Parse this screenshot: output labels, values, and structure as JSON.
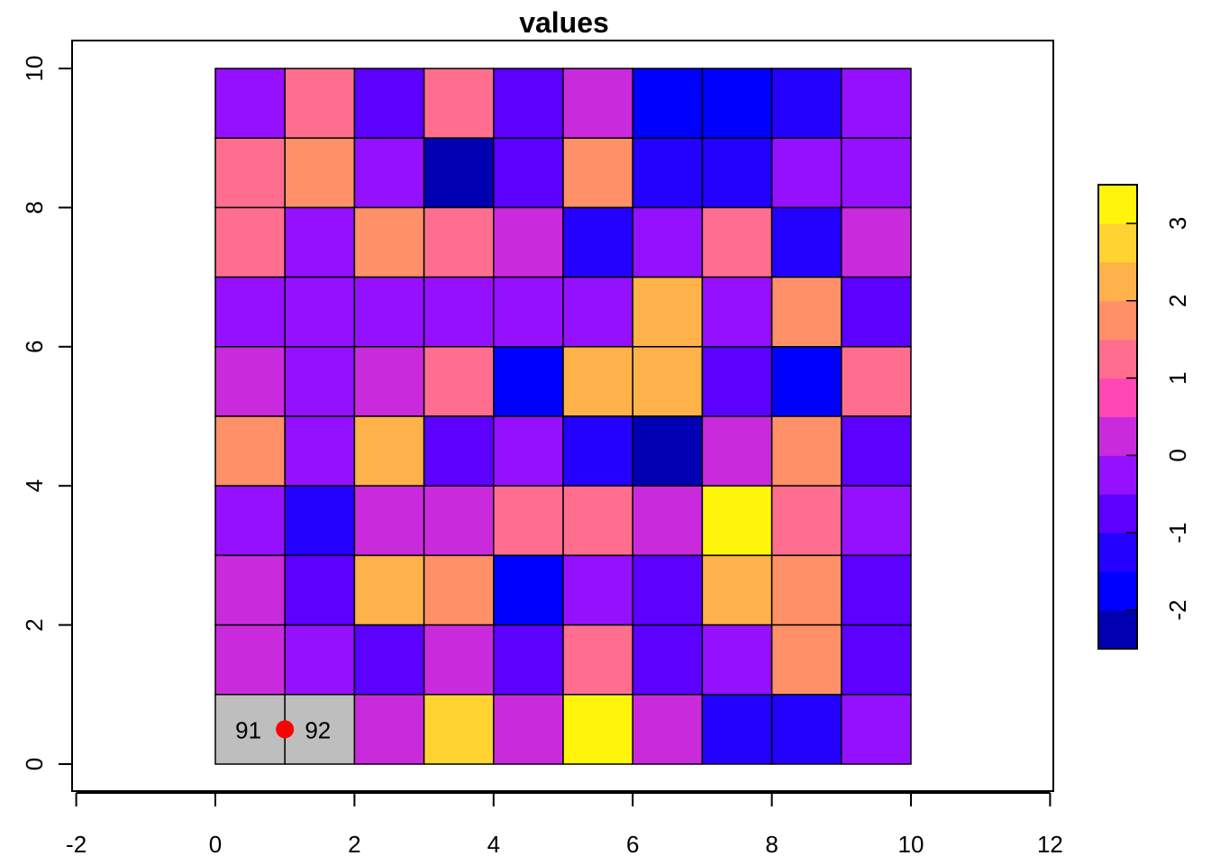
{
  "chart_data": {
    "type": "heatmap",
    "title": "values",
    "xlabel": "",
    "ylabel": "",
    "xlim": [
      -2,
      12
    ],
    "ylim": [
      0,
      10
    ],
    "x_ticks": [
      "-2",
      "0",
      "2",
      "4",
      "6",
      "8",
      "10",
      "12"
    ],
    "y_ticks": [
      "0",
      "2",
      "4",
      "6",
      "8",
      "10"
    ],
    "grid": false,
    "legend": {
      "type": "colorbar",
      "placement": "right",
      "ticks": [
        "-2",
        "-1",
        "0",
        "1",
        "2",
        "3"
      ],
      "breaks": [
        -2.5,
        -2.0,
        -1.5,
        -1.0,
        -0.5,
        0.0,
        0.5,
        1.0,
        1.5,
        2.0,
        2.5,
        3.0,
        3.5
      ],
      "colors": [
        "#0000B2",
        "#0000FF",
        "#2400FF",
        "#5C00FF",
        "#9510FF",
        "#C92BDC",
        "#FF48B5",
        "#FF6E8E",
        "#FF9068",
        "#FFB14A",
        "#FFD332",
        "#FFF50A"
      ]
    },
    "rows_top_to_bottom": [
      [
        -0.2,
        1.2,
        -0.8,
        1.2,
        -0.8,
        0.2,
        -1.8,
        -1.8,
        -1.2,
        -0.2
      ],
      [
        1.2,
        1.7,
        -0.2,
        -2.2,
        -0.8,
        1.7,
        -1.2,
        -1.2,
        -0.2,
        -0.2
      ],
      [
        1.2,
        -0.2,
        1.7,
        1.2,
        0.2,
        -1.2,
        -0.2,
        1.2,
        -1.2,
        0.2
      ],
      [
        -0.2,
        -0.2,
        -0.2,
        -0.2,
        -0.2,
        -0.2,
        2.2,
        -0.2,
        1.7,
        -0.8
      ],
      [
        0.2,
        -0.2,
        0.2,
        1.2,
        -1.8,
        2.2,
        2.2,
        -0.8,
        -1.8,
        1.2
      ],
      [
        1.7,
        -0.2,
        2.2,
        -0.8,
        -0.2,
        -1.2,
        -2.2,
        0.2,
        1.7,
        -0.8
      ],
      [
        -0.2,
        -1.2,
        0.2,
        0.2,
        1.2,
        1.2,
        0.2,
        3.3,
        1.2,
        -0.2
      ],
      [
        0.2,
        -0.8,
        2.2,
        1.7,
        -1.8,
        -0.2,
        -0.8,
        2.2,
        1.7,
        -0.8
      ],
      [
        0.2,
        -0.2,
        -0.8,
        0.2,
        -0.8,
        1.2,
        -0.8,
        -0.2,
        1.7,
        -0.8
      ],
      [
        null,
        null,
        0.2,
        2.7,
        0.2,
        3.3,
        0.2,
        -1.2,
        -1.2,
        -0.2
      ]
    ],
    "na_color": "#BEBEBE",
    "highlighted_cells": [
      {
        "label": "91",
        "x": 0.5,
        "y": 0.5
      },
      {
        "label": "92",
        "x": 1.5,
        "y": 0.5
      }
    ],
    "point": {
      "x": 1,
      "y": 0.5,
      "color": "#FF0000"
    }
  }
}
